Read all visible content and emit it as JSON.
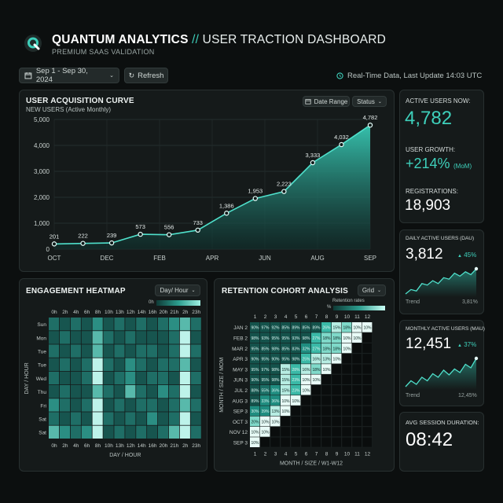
{
  "header": {
    "title_brand": "QUANTUM ANALYTICS",
    "title_sep": "//",
    "title_rest": "USER TRACTION DASHBOARD",
    "subtitle": "PREMIUM SAAS VALIDATION",
    "date_range": "Sep 1 - Sep 30, 2024",
    "refresh_label": "Refresh",
    "status_text": "Real-Time Data, Last Update 14:03 UTC"
  },
  "colors": {
    "accent": "#37c7b3",
    "bg": "#0c0f0f",
    "panel": "#151a1a"
  },
  "acquisition": {
    "title": "USER ACQUISITION CURVE",
    "subtitle": "NEW USERS (Active Monthly)",
    "date_range_btn": "Date Range",
    "status_btn": "Status"
  },
  "chart_data": [
    {
      "type": "area",
      "title": "USER ACQUISITION CURVE",
      "subtitle": "NEW USERS (Active Monthly)",
      "x_ticks": [
        "OCT",
        "DEC",
        "FEB",
        "APR",
        "JUN",
        "AUG",
        "SEP"
      ],
      "y_ticks": [
        "0",
        "1,000",
        "2,000",
        "3,000",
        "4,000",
        "5,000"
      ],
      "ylim": [
        0,
        5000
      ],
      "values": [
        201,
        222,
        239,
        573,
        556,
        733,
        1386,
        1953,
        2223,
        3333,
        4032,
        4782
      ],
      "labels": [
        "201",
        "222",
        "239",
        "573",
        "556",
        "733",
        "1,386",
        "1,953",
        "2,223",
        "3,333",
        "4,032",
        "4,782"
      ]
    },
    {
      "type": "line",
      "title": "DAILY ACTIVE USERS (DAU)",
      "values": [
        2.2,
        2.5,
        2.4,
        2.9,
        2.8,
        3.1,
        2.9,
        3.3,
        3.2,
        3.6,
        3.4,
        3.7,
        3.5,
        3.9
      ]
    },
    {
      "type": "line",
      "title": "MONTHLY ACTIVE USERS (MAU)",
      "values": [
        1.5,
        2.0,
        1.7,
        2.3,
        2.0,
        2.6,
        2.3,
        2.9,
        2.5,
        3.0,
        2.7,
        3.4,
        3.1,
        3.9
      ]
    }
  ],
  "kpis": {
    "active_label": "ACTIVE USERS NOW:",
    "active_value": "4,782",
    "growth_label": "USER GROWTH:",
    "growth_value": "+214%",
    "growth_unit": "(MoM)",
    "reg_label": "REGISTRATIONS:",
    "reg_value": "18,903"
  },
  "dau": {
    "title": "DAILY ACTIVE USERS (DAU)",
    "value": "3,812",
    "delta": "45%",
    "trend": "Trend",
    "trend_val": "3,81%"
  },
  "mau": {
    "title": "MONTHLY ACTIVE USERS (MAU)",
    "value": "12,451",
    "delta": "37%",
    "trend": "Trend",
    "trend_val": "12,45%"
  },
  "session": {
    "title": "AVG SESSION DURATION:",
    "value": "08:42"
  },
  "heatmap": {
    "title": "ENGAGEMENT HEATMAP",
    "selector": "Day/ Hour",
    "legend_label": "0h",
    "hours": [
      "0h",
      "2h",
      "4h",
      "6h",
      "8h",
      "10h",
      "13h",
      "12h",
      "14h",
      "16h",
      "20h",
      "21h",
      "2h",
      "23h"
    ],
    "days": [
      "Sun",
      "Mon",
      "Tue",
      "Tue",
      "Wed",
      "Thu",
      "Fri",
      "Sat",
      "Sat"
    ],
    "axis_x": "DAY / HOUR",
    "axis_y": "DAY / HOUR",
    "grid": [
      [
        3,
        2,
        3,
        2,
        4,
        2,
        3,
        2,
        3,
        2,
        3,
        4,
        5,
        3
      ],
      [
        2,
        3,
        2,
        2,
        5,
        3,
        2,
        3,
        2,
        2,
        2,
        3,
        6,
        2
      ],
      [
        3,
        2,
        3,
        2,
        5,
        2,
        3,
        2,
        3,
        3,
        2,
        3,
        6,
        3
      ],
      [
        2,
        3,
        2,
        3,
        6,
        3,
        2,
        4,
        3,
        2,
        3,
        3,
        5,
        2
      ],
      [
        3,
        2,
        2,
        3,
        6,
        2,
        3,
        4,
        2,
        3,
        3,
        2,
        6,
        3
      ],
      [
        2,
        3,
        2,
        2,
        5,
        3,
        2,
        5,
        3,
        2,
        4,
        3,
        6,
        2
      ],
      [
        4,
        3,
        2,
        3,
        6,
        2,
        3,
        2,
        3,
        3,
        2,
        3,
        5,
        3
      ],
      [
        3,
        2,
        3,
        2,
        6,
        3,
        2,
        3,
        2,
        4,
        2,
        3,
        6,
        2
      ],
      [
        5,
        4,
        3,
        4,
        6,
        2,
        3,
        2,
        3,
        2,
        3,
        5,
        6,
        3
      ]
    ]
  },
  "cohort": {
    "title": "RETENTION COHORT ANALYSIS",
    "selector": "Grid",
    "legend_label": "Retention rates",
    "legend_pct": "%",
    "rows": [
      "JAN 2",
      "FEB 2",
      "MAR 2",
      "APR 3",
      "MAY 3",
      "JUN 3",
      "JUL 2",
      "AUG 3",
      "SEP 3",
      "OCT 3",
      "NOV 12",
      "SEP 3"
    ],
    "cols": [
      "1",
      "2",
      "3",
      "4",
      "5",
      "6",
      "7",
      "8",
      "9",
      "10",
      "11",
      "12"
    ],
    "axis_x": "MONTH / SIZE / W1-W12",
    "axis_y": "MONTH / SIZE / MOM",
    "cells": [
      [
        "90%",
        "97%",
        "92%",
        "85%",
        "89%",
        "85%",
        "89%",
        "26%",
        "15%",
        "18%",
        "10%",
        "10%"
      ],
      [
        "98%",
        "93%",
        "95%",
        "95%",
        "93%",
        "98%",
        "27%",
        "18%",
        "18%",
        "10%",
        "10%"
      ],
      [
        "95%",
        "85%",
        "98%",
        "85%",
        "83%",
        "32%",
        "27%",
        "18%",
        "18%",
        "10%"
      ],
      [
        "90%",
        "95%",
        "90%",
        "95%",
        "98%",
        "25%",
        "16%",
        "13%",
        "10%"
      ],
      [
        "95%",
        "97%",
        "98%",
        "15%",
        "28%",
        "16%",
        "18%",
        "10%"
      ],
      [
        "90%",
        "95%",
        "98%",
        "15%",
        "23%",
        "10%",
        "10%"
      ],
      [
        "88%",
        "55%",
        "36%",
        "15%",
        "23%",
        "10%"
      ],
      [
        "89%",
        "33%",
        "36%",
        "10%",
        "10%"
      ],
      [
        "30%",
        "39%",
        "13%",
        "10%"
      ],
      [
        "20%",
        "10%",
        "10%"
      ],
      [
        "10%",
        "10%"
      ],
      [
        "10%"
      ]
    ]
  }
}
